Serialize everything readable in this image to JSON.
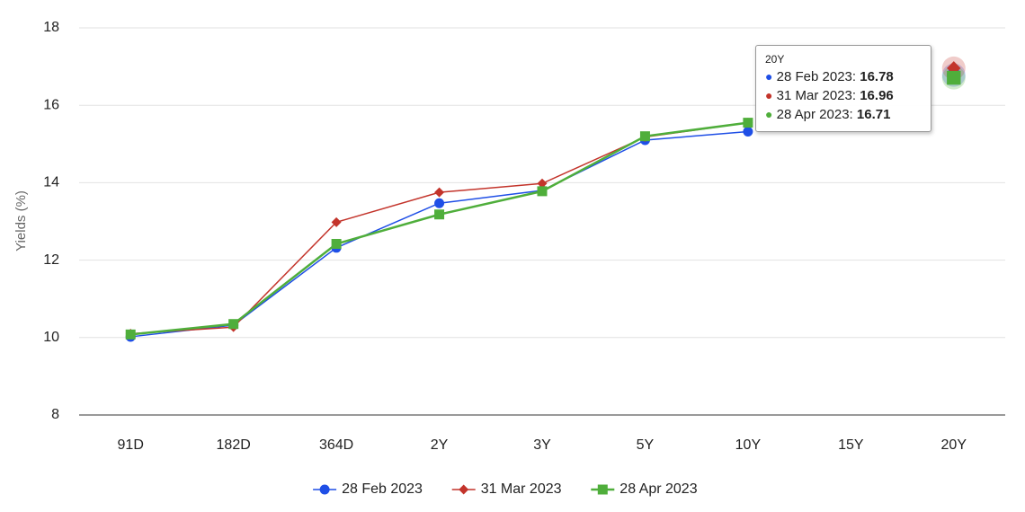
{
  "chart_data": {
    "type": "line",
    "y_label": "Yields (%)",
    "categories": [
      "91D",
      "182D",
      "364D",
      "2Y",
      "3Y",
      "5Y",
      "10Y",
      "15Y",
      "20Y"
    ],
    "series": [
      {
        "name": "28 Feb 2023",
        "color": "#1f4fe6",
        "marker": "circle",
        "width": 1.5,
        "values": [
          10.02,
          10.32,
          12.32,
          13.47,
          13.8,
          15.1,
          15.32,
          null,
          16.78
        ]
      },
      {
        "name": "31 Mar 2023",
        "color": "#c3342b",
        "marker": "diamond",
        "width": 1.5,
        "values": [
          10.1,
          10.27,
          12.98,
          13.75,
          13.98,
          15.18,
          15.55,
          null,
          16.96
        ]
      },
      {
        "name": "28 Apr 2023",
        "color": "#4fae3b",
        "marker": "square",
        "width": 2.5,
        "values": [
          10.08,
          10.35,
          12.42,
          13.18,
          13.78,
          15.2,
          15.55,
          null,
          16.71
        ]
      }
    ],
    "ylim": [
      8,
      18
    ],
    "yticks": [
      8,
      10,
      12,
      14,
      16,
      18
    ],
    "grid": true,
    "tooltip": {
      "category_index": 8,
      "separator": ":"
    }
  }
}
